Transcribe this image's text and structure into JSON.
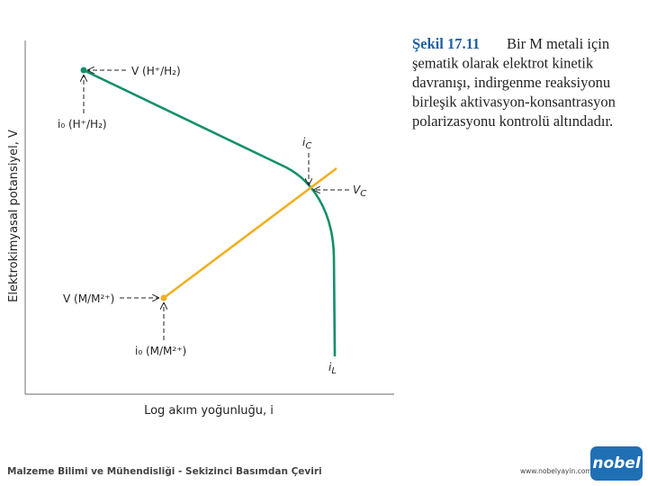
{
  "axes": {
    "x_label": "Log akım yoğunluğu, i",
    "y_label": "Elektrokimyasal potansiyel, V"
  },
  "annotations": {
    "v_h": "V (H⁺/H₂)",
    "i0_h": "i₀ (H⁺/H₂)",
    "i_c": {
      "text": "i",
      "sub": "C"
    },
    "v_c": {
      "text": "V",
      "sub": "C"
    },
    "v_m": "V (M/M²⁺)",
    "i0_m": "i₀ (M/M²⁺)",
    "i_l": {
      "text": "i",
      "sub": "L"
    }
  },
  "caption": {
    "label": "Şekil 17.11",
    "lines": [
      "Bir M metali için",
      "şematik olarak elektrot kinetik",
      "davranışı, indirgenme reaksiyonu",
      "birleşik aktivasyon-konsantrasyon",
      "polarizasyonu kontrolü altındadır."
    ]
  },
  "footer": {
    "left": "Malzeme Bilimi ve Mühendisliği - Sekizinci Basımdan Çeviri",
    "url": "www.nobelyayin.com",
    "logo": "nobel"
  }
}
